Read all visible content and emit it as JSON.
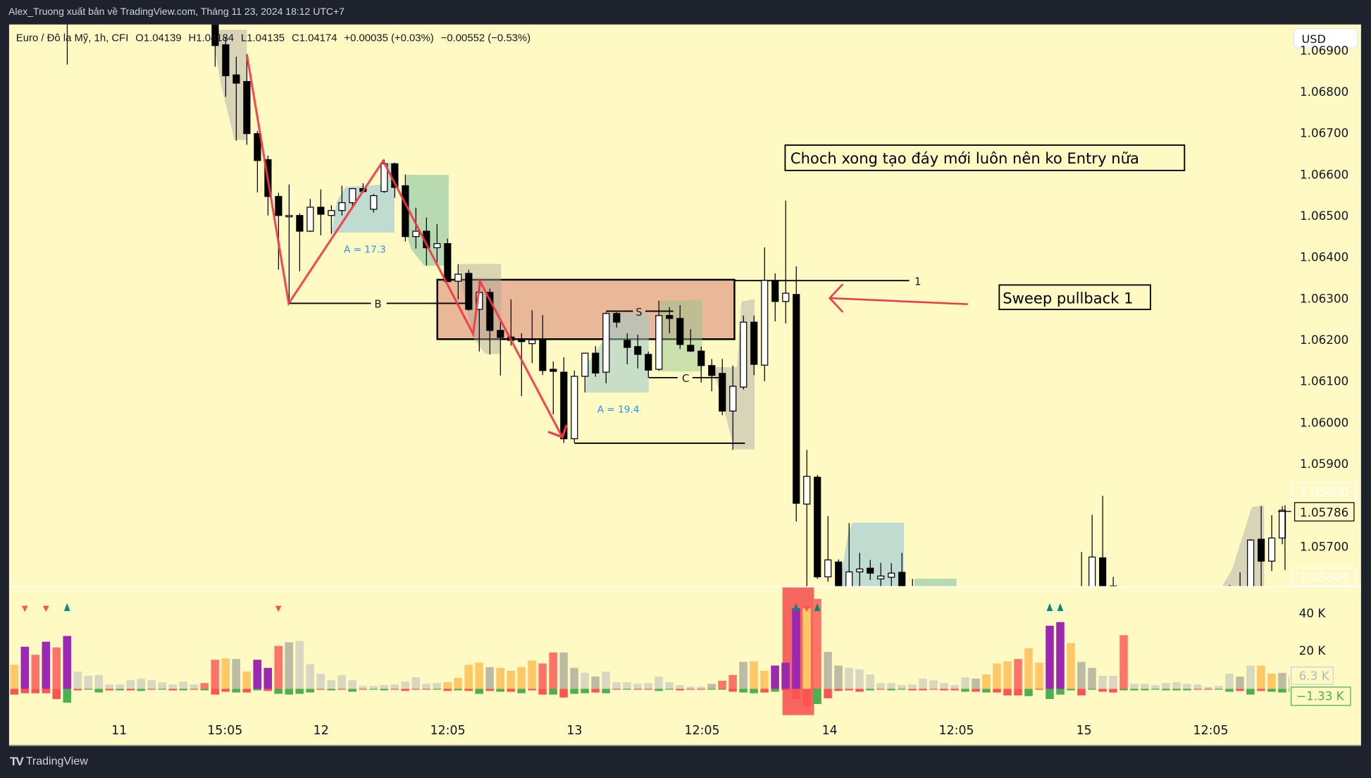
{
  "header": {
    "attribution": "Alex_Truong xuất bản về TradingView.com, Tháng 11 23, 2024 18:12 UTC+7"
  },
  "legend": {
    "symbol": "Euro / Đô la Mỹ, 1h, CFI",
    "open": "O1.04139",
    "high": "H1.04184",
    "low": "L1.04135",
    "close": "C1.04174",
    "change": "+0.00035 (+0.03%)",
    "change2": "−0.00552 (−0.53%)"
  },
  "currency_button": "USD",
  "price_axis": {
    "ticks": [
      "1.06900",
      "1.06800",
      "1.06700",
      "1.06600",
      "1.06500",
      "1.06400",
      "1.06300",
      "1.06200",
      "1.06100",
      "1.06000",
      "1.05900",
      "1.05700"
    ],
    "faded_labels": [
      "1.05800",
      "1.05604"
    ],
    "current_price": "1.05786"
  },
  "volume_axis": {
    "ticks": [
      "40 K",
      "20 K"
    ],
    "volume_label": "6.3 K",
    "delta_label": "−1.33 K"
  },
  "time_axis": [
    "11",
    "15:05",
    "12",
    "12:05",
    "13",
    "12:05",
    "14",
    "12:05",
    "15",
    "12:05"
  ],
  "annotations": {
    "note1": "Choch xong tạo đáy mới luôn nên ko Entry nữa",
    "note2": "Sweep pullback 1",
    "label_a1": "A = 17.3",
    "label_a2": "A = 19.4",
    "label_b": "B",
    "label_s": "S",
    "label_c": "C",
    "label_1": "1"
  },
  "footer": {
    "brand": "TradingView"
  },
  "colors": {
    "background": "#fff9c4",
    "frame": "#1e222d",
    "zigzag": "#f23645",
    "zone_box": "#e8b898",
    "volume": {
      "p": "#9c27b0",
      "r": "#ff7468",
      "o": "#ffc766",
      "g": "#d8d8c0",
      "d": "#bcbca4"
    },
    "delta_up": "#4caf50",
    "delta_down": "#ff5252",
    "marker_up": "#00897b",
    "marker_down": "#ff5252"
  },
  "chart_data": {
    "type": "candlestick",
    "interval": "1h",
    "ylim": [
      1.0556,
      1.0695
    ],
    "candles_ohlc": [
      null,
      null,
      null,
      null,
      null,
      [
        1.0705,
        1.071,
        1.06865,
        1.0702
      ],
      null,
      null,
      null,
      null,
      null,
      null,
      null,
      null,
      null,
      null,
      null,
      null,
      null,
      [
        1.07,
        1.0703,
        1.0686,
        1.06911
      ],
      [
        1.06913,
        1.0693,
        1.06787,
        1.06838
      ],
      [
        1.0684,
        1.06884,
        1.06681,
        1.0682
      ],
      [
        1.06824,
        1.06889,
        1.06671,
        1.06698
      ],
      [
        1.06698,
        1.06705,
        1.06556,
        1.06633
      ],
      [
        1.06635,
        1.06645,
        1.065,
        1.06546
      ],
      [
        1.06546,
        1.06555,
        1.06369,
        1.065
      ],
      [
        1.065,
        1.06575,
        1.06285,
        1.065
      ],
      [
        1.065,
        1.06505,
        1.06365,
        1.06462
      ],
      [
        1.06462,
        1.0654,
        1.0646,
        1.0652
      ],
      [
        1.0652,
        1.06563,
        1.06452,
        1.06503
      ],
      [
        1.065,
        1.06525,
        1.06455,
        1.06512
      ],
      [
        1.06512,
        1.06572,
        1.065,
        1.06531
      ],
      [
        1.06531,
        1.06565,
        1.0652,
        1.06565
      ],
      [
        1.06565,
        1.06578,
        1.06555,
        1.06558
      ],
      [
        1.06515,
        1.06552,
        1.06507,
        1.06548
      ],
      [
        1.06558,
        1.06635,
        1.06555,
        1.06625
      ],
      [
        1.06625,
        1.06628,
        1.06543,
        1.06568
      ],
      [
        1.06572,
        1.06599,
        1.06437,
        1.06449
      ],
      [
        1.06449,
        1.06519,
        1.0642,
        1.06462
      ],
      [
        1.06462,
        1.06495,
        1.06379,
        1.06422
      ],
      [
        1.06422,
        1.06479,
        1.06387,
        1.06432
      ],
      [
        1.06432,
        1.06444,
        1.0634,
        1.0634
      ],
      [
        1.06341,
        1.06382,
        1.06297,
        1.06358
      ],
      [
        1.0636,
        1.06369,
        1.0627,
        1.06273
      ],
      [
        1.06273,
        1.06341,
        1.06171,
        1.06314
      ],
      [
        1.06314,
        1.06323,
        1.06164,
        1.06222
      ],
      [
        1.06222,
        1.06242,
        1.06113,
        1.06205
      ],
      [
        1.06206,
        1.06297,
        1.06185,
        1.06198
      ],
      [
        1.06199,
        1.06215,
        1.06063,
        1.06195
      ],
      [
        1.0619,
        1.06271,
        1.06143,
        1.06199
      ],
      [
        1.06199,
        1.06259,
        1.06114,
        1.06125
      ],
      [
        1.06128,
        1.06147,
        1.06019,
        1.06123
      ],
      [
        1.06121,
        1.06157,
        1.0595,
        1.0596
      ],
      [
        1.0596,
        1.06125,
        1.0595,
        1.06111
      ],
      [
        1.06111,
        1.06167,
        1.06072,
        1.06167
      ],
      [
        1.06167,
        1.06184,
        1.0611,
        1.06119
      ],
      [
        1.06121,
        1.06266,
        1.06094,
        1.06263
      ],
      [
        1.06263,
        1.06266,
        1.06229,
        1.06242
      ],
      [
        1.06198,
        1.06215,
        1.0614,
        1.06181
      ],
      [
        1.06183,
        1.06212,
        1.0613,
        1.06164
      ],
      [
        1.06164,
        1.06171,
        1.06108,
        1.06126
      ],
      [
        1.06128,
        1.06294,
        1.06124,
        1.06258
      ],
      [
        1.06258,
        1.06278,
        1.06215,
        1.06251
      ],
      [
        1.06251,
        1.06283,
        1.06177,
        1.06188
      ],
      [
        1.06186,
        1.06225,
        1.0617,
        1.06172
      ],
      [
        1.06172,
        1.06183,
        1.06096,
        1.06137
      ],
      [
        1.06137,
        1.06153,
        1.06075,
        1.06113
      ],
      [
        1.06118,
        1.06153,
        1.06017,
        1.06027
      ],
      [
        1.06027,
        1.06137,
        1.05933,
        1.06087
      ],
      [
        1.06085,
        1.06258,
        1.06079,
        1.06242
      ],
      [
        1.06242,
        1.06258,
        1.06114,
        1.0614
      ],
      [
        1.06138,
        1.06423,
        1.06099,
        1.06343
      ],
      [
        1.06343,
        1.0636,
        1.06244,
        1.06292
      ],
      [
        1.06292,
        1.06536,
        1.06239,
        1.06312
      ],
      [
        1.06309,
        1.06377,
        1.0576,
        1.05804
      ],
      [
        1.05802,
        1.05933,
        1.0555,
        1.05869
      ],
      [
        1.05867,
        1.05872,
        1.05621,
        1.05626
      ],
      [
        1.05626,
        1.05773,
        1.05614,
        1.05667
      ],
      [
        1.05662,
        1.05668,
        1.0552,
        1.0556
      ],
      [
        1.0556,
        1.05756,
        1.0554,
        1.05638
      ],
      [
        1.05638,
        1.05684,
        1.0558,
        1.05645
      ],
      [
        1.05647,
        1.05667,
        1.05618,
        1.05635
      ],
      [
        1.05621,
        1.0566,
        1.0558,
        1.05628
      ],
      [
        1.05625,
        1.05659,
        1.0559,
        1.05635
      ],
      [
        1.05637,
        1.05684,
        1.0555,
        1.0557
      ],
      [
        1.0555,
        1.05621,
        1.0553,
        1.0558
      ],
      null,
      null,
      null,
      null,
      null,
      null,
      null,
      null,
      null,
      null,
      null,
      null,
      null,
      null,
      null,
      [
        1.0557,
        1.05686,
        1.0554,
        1.0558
      ],
      [
        1.0558,
        1.05776,
        1.0556,
        1.05674
      ],
      [
        1.05672,
        1.05822,
        1.05595,
        1.05604
      ],
      [
        1.05604,
        1.05626,
        1.0559,
        1.056
      ],
      null,
      null,
      null,
      null,
      null,
      null,
      null,
      null,
      null,
      null,
      [
        1.0557,
        1.05606,
        1.0554,
        1.0558
      ],
      [
        1.0557,
        1.05637,
        1.0554,
        1.0559
      ],
      [
        1.0559,
        1.05717,
        1.0557,
        1.05715
      ],
      [
        1.05717,
        1.05797,
        1.0559,
        1.05664
      ],
      [
        1.05664,
        1.05775,
        1.0564,
        1.0572
      ],
      [
        1.0572,
        1.05797,
        1.05705,
        1.05787
      ],
      [
        1.05783,
        1.05785,
        1.05638,
        1.05786
      ]
    ],
    "volume_k": [
      12.5,
      21.9,
      17.7,
      24.5,
      21.5,
      27.5,
      9,
      6.8,
      7.2,
      2.3,
      2.3,
      4.5,
      5.3,
      4.5,
      3.4,
      2.3,
      3.8,
      2.3,
      3,
      15.1,
      15.8,
      15.5,
      9,
      15.1,
      10.9,
      22.3,
      24.2,
      24.9,
      12.8,
      7.9,
      4.5,
      7.2,
      4.5,
      1.5,
      1.5,
      1.9,
      2.3,
      3.8,
      6,
      2.6,
      3,
      3.4,
      5.7,
      12.5,
      13.6,
      11.3,
      10.9,
      9.4,
      11.3,
      14.7,
      13.2,
      18.9,
      18.9,
      10.9,
      8.3,
      6.4,
      9,
      3.4,
      3.4,
      2.6,
      3,
      6.4,
      3.4,
      1.9,
      1.1,
      1.1,
      2.6,
      4.2,
      7.2,
      14,
      14.3,
      9.4,
      12.1,
      13.6,
      41.9,
      41.9,
      46.8,
      19.2,
      12.1,
      10.9,
      10.2,
      7.5,
      3,
      3,
      1.9,
      2.3,
      5.3,
      4.5,
      3,
      1.9,
      6,
      5.3,
      7.5,
      13.2,
      14.3,
      15.5,
      21.1,
      13.6,
      32.8,
      34.7,
      23.8,
      14,
      10.9,
      6.8,
      6.8,
      27.9,
      2.6,
      2.6,
      1.9,
      3,
      3.4,
      2.6,
      2.3,
      1.1,
      1.5,
      7.9,
      6.4,
      12.1,
      12.1,
      7.9,
      8.3,
      6.4
    ],
    "volume_type": "oprprpggggggggggggrrodopprdggggggggggggggoooodoooorrddgdggggggggggdrrdooppporddggggggggggggdooorooppoddggrggggggggggdgooddg",
    "delta_k": [
      -3,
      -2.3,
      -2.3,
      -2.3,
      -5.3,
      7.2,
      -0.8,
      0.4,
      1.9,
      -0.8,
      0.8,
      -0.8,
      1.1,
      -0.4,
      0.4,
      -0.8,
      0.8,
      -0.4,
      0.8,
      -3,
      -1.5,
      1.9,
      -1.9,
      0.8,
      -1.1,
      2.6,
      3,
      2.6,
      1.9,
      -0.4,
      0.8,
      -0.4,
      1.5,
      -0.4,
      0.4,
      0.8,
      -0.4,
      -1.1,
      -0.4,
      -0.4,
      0.4,
      -1.1,
      0.8,
      -1.1,
      2.6,
      -1.1,
      1.5,
      -1.5,
      2.3,
      -0.8,
      -3,
      3,
      -4.5,
      2.6,
      2.3,
      -1.9,
      2.3,
      -0.4,
      0.4,
      -0.4,
      -0.4,
      1.1,
      0.4,
      -0.8,
      -0.4,
      -0.4,
      0.4,
      0.4,
      -1.5,
      1.9,
      2.3,
      -1.9,
      1.5,
      -0.8,
      -5.3,
      -9,
      7.9,
      -4.9,
      -1.1,
      -0.8,
      -1.5,
      0.8,
      -0.4,
      0.8,
      0.4,
      -0.8,
      -0.8,
      -0.4,
      -0.8,
      -0.8,
      1.5,
      -1.5,
      1.9,
      -1.9,
      -3.4,
      -3.4,
      3.8,
      -0.4,
      5.3,
      3,
      0.8,
      -3.4,
      0.4,
      -1.5,
      -1.9,
      0.8,
      0.8,
      0.8,
      0.4,
      0.8,
      0.8,
      0.8,
      -0.4,
      -0.4,
      0.4,
      1.5,
      -1.1,
      3,
      -1.1,
      1.5,
      1.9,
      1.5
    ],
    "signal_markers": [
      {
        "bar": 2,
        "dir": "down"
      },
      {
        "bar": 4,
        "dir": "down"
      },
      {
        "bar": 6,
        "dir": "up"
      },
      {
        "bar": 26,
        "dir": "down"
      },
      {
        "bar": 75,
        "dir": "up"
      },
      {
        "bar": 76,
        "dir": "down"
      },
      {
        "bar": 77,
        "dir": "up"
      },
      {
        "bar": 99,
        "dir": "up"
      },
      {
        "bar": 100,
        "dir": "up"
      }
    ]
  }
}
